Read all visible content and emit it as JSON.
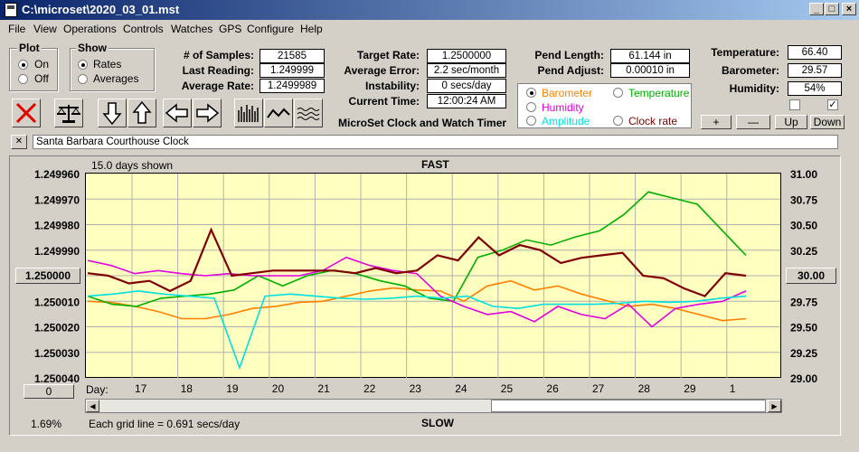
{
  "window": {
    "title": "C:\\microset\\2020_03_01.mst"
  },
  "menu": [
    "File",
    "View",
    "Operations",
    "Controls",
    "Watches",
    "GPS",
    "Configure",
    "Help"
  ],
  "plot_group": {
    "label": "Plot",
    "on": "On",
    "off": "Off"
  },
  "show_group": {
    "label": "Show",
    "rates": "Rates",
    "averages": "Averages"
  },
  "stats": {
    "samples_label": "# of Samples:",
    "samples": "21585",
    "last_label": "Last Reading:",
    "last": "1.249999",
    "avg_label": "Average Rate:",
    "avg": "1.2499989"
  },
  "target": {
    "rate_label": "Target Rate:",
    "rate": "1.2500000",
    "error_label": "Average Error:",
    "error": "2.2 sec/month",
    "inst_label": "Instability:",
    "inst": "0 secs/day",
    "time_label": "Current Time:",
    "time": "12:00:24 AM",
    "caption": "MicroSet Clock and Watch Timer"
  },
  "pend": {
    "length_label": "Pend Length:",
    "length": "61.144 in",
    "adjust_label": "Pend Adjust:",
    "adjust": "0.00010 in"
  },
  "env": {
    "temp_label": "Temperature:",
    "temp": "66.40",
    "baro_label": "Barometer:",
    "baro": "29.57",
    "hum_label": "Humidity:",
    "hum": "54%"
  },
  "series_select": {
    "barometer": "Barometer",
    "temperature": "Temperature",
    "humidity": "Humidity",
    "amplitude": "Amplitude",
    "clock_rate": "Clock rate"
  },
  "env_buttons": {
    "plus": "+",
    "minus": "—",
    "up": "Up",
    "down": "Down"
  },
  "note": {
    "close": "✕",
    "text": "Santa Barbara Courthouse Clock"
  },
  "chart": {
    "days_shown": "15.0 days shown",
    "fast": "FAST",
    "slow": "SLOW",
    "grid_note": "Each grid line = 0.691 secs/day",
    "percent": "1.69%",
    "day_label": "Day:",
    "left_box": "1.250000",
    "right_box": "30.00",
    "zero_box": "0"
  },
  "chart_data": {
    "type": "line",
    "x": {
      "ticks": [
        "17",
        "18",
        "19",
        "20",
        "21",
        "22",
        "23",
        "24",
        "25",
        "26",
        "27",
        "28",
        "29",
        "1"
      ]
    },
    "y_left": {
      "ticks": [
        "1.249960",
        "1.249970",
        "1.249980",
        "1.249990",
        "1.250000",
        "1.250010",
        "1.250020",
        "1.250030",
        "1.250040"
      ],
      "range": [
        1.24996,
        1.25004
      ],
      "inverted": true
    },
    "y_right": {
      "ticks": [
        "31.00",
        "30.75",
        "30.50",
        "30.25",
        "30.00",
        "29.75",
        "29.50",
        "29.25",
        "29.00"
      ],
      "range": [
        29.0,
        31.0
      ]
    },
    "series": [
      {
        "name": "Clock rate",
        "color": "#800000",
        "axis": "left",
        "values": [
          1.249999,
          1.25,
          1.250003,
          1.250002,
          1.250006,
          1.250002,
          1.249982,
          1.25,
          1.249999,
          1.249998,
          1.249998,
          1.249998,
          1.249998,
          1.249999,
          1.249997,
          1.249999,
          1.249998,
          1.249992,
          1.249994,
          1.249985,
          1.249992,
          1.249988,
          1.24999,
          1.249995,
          1.249993,
          1.249992,
          1.249991,
          1.25,
          1.250001,
          1.250005,
          1.250008,
          1.249999,
          1.25
        ]
      },
      {
        "name": "Barometer",
        "color": "#ff8000",
        "axis": "right",
        "values": [
          29.75,
          29.74,
          29.7,
          29.65,
          29.58,
          29.58,
          29.62,
          29.68,
          29.7,
          29.74,
          29.75,
          29.8,
          29.85,
          29.88,
          29.86,
          29.85,
          29.75,
          29.9,
          29.95,
          29.86,
          29.9,
          29.82,
          29.76,
          29.7,
          29.72,
          29.68,
          29.62,
          29.56,
          29.58
        ]
      },
      {
        "name": "Temperature",
        "color": "#00b000",
        "axis": "right",
        "values": [
          29.8,
          29.72,
          29.7,
          29.78,
          29.8,
          29.82,
          29.86,
          30.0,
          29.9,
          30.0,
          30.05,
          30.02,
          29.95,
          29.9,
          29.78,
          29.75,
          30.18,
          30.25,
          30.35,
          30.3,
          30.38,
          30.44,
          30.6,
          30.82,
          30.76,
          30.7,
          30.45,
          30.2
        ]
      },
      {
        "name": "Humidity",
        "color": "#e000e0",
        "axis": "right",
        "values": [
          30.15,
          30.1,
          30.02,
          30.05,
          30.02,
          30.0,
          30.02,
          30.0,
          30.0,
          30.0,
          30.05,
          30.18,
          30.1,
          30.05,
          30.02,
          29.8,
          29.7,
          29.62,
          29.65,
          29.55,
          29.7,
          29.62,
          29.58,
          29.72,
          29.5,
          29.68,
          29.72,
          29.75,
          29.85
        ]
      },
      {
        "name": "Amplitude",
        "color": "#00e0e0",
        "axis": "right",
        "values": [
          29.8,
          29.82,
          29.85,
          29.82,
          29.8,
          29.78,
          29.1,
          29.8,
          29.82,
          29.8,
          29.78,
          29.77,
          29.78,
          29.8,
          29.78,
          29.8,
          29.7,
          29.68,
          29.72,
          29.72,
          29.72,
          29.73,
          29.75,
          29.74,
          29.75,
          29.78,
          29.8
        ]
      }
    ]
  }
}
